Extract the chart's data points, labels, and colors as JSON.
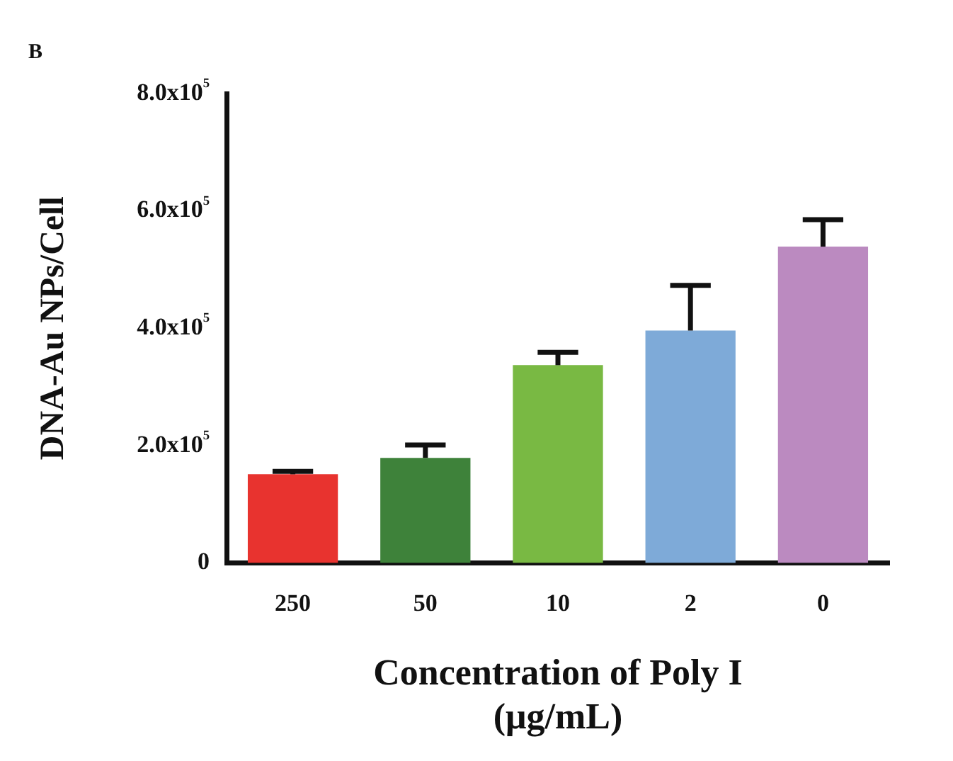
{
  "chart_data": {
    "type": "bar",
    "title": "B",
    "xlabel": "Concentration of Poly I\n(μg/mL)",
    "ylabel": "DNA-Au NPs/Cell",
    "categories": [
      "250",
      "50",
      "10",
      "2",
      "0"
    ],
    "values": [
      151000,
      179000,
      337000,
      396000,
      539000
    ],
    "errors": [
      [
        151000,
        156000
      ],
      [
        179000,
        201000
      ],
      [
        337000,
        359000
      ],
      [
        396000,
        473000
      ],
      [
        539000,
        585000
      ]
    ],
    "colors": [
      "#e8332f",
      "#3e823a",
      "#79b943",
      "#7eaad8",
      "#bb8ac0"
    ],
    "ylim": [
      0,
      800000
    ],
    "yticks": [
      0,
      {
        "value": 200000,
        "label": "2.0x10$^{5}$"
      },
      {
        "value": 400000,
        "label": "4.0x10$^{5}$"
      },
      {
        "value": 600000,
        "label": "6.0x10$^{5}$"
      },
      {
        "value": 800000,
        "label": "8.0x10$^{5}$"
      }
    ],
    "grid": false,
    "legend": false
  }
}
